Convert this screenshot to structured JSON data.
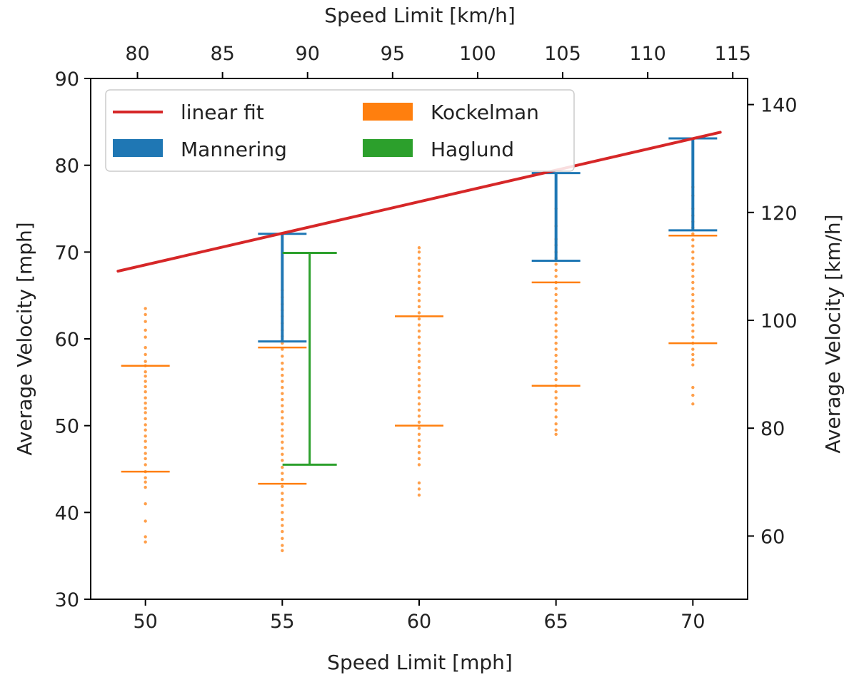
{
  "chart_data": {
    "type": "scatter",
    "title": "",
    "xlabel": "Speed Limit [mph]",
    "ylabel": "Average Velocity [mph]",
    "x2label": "Speed Limit [km/h]",
    "y2label": "Average Velocity [km/h]",
    "xlim": [
      48,
      72
    ],
    "ylim": [
      30,
      90
    ],
    "xticks": [
      50,
      55,
      60,
      65,
      70
    ],
    "yticks": [
      30,
      40,
      50,
      60,
      70,
      80,
      90
    ],
    "x2ticks": [
      80,
      85,
      90,
      95,
      100,
      105,
      110,
      115
    ],
    "y2ticks": [
      60,
      80,
      100,
      120,
      140
    ],
    "grid": false,
    "legend_position": "top-left",
    "colors": {
      "linear_fit": "#d62728",
      "mannering": "#1f77b4",
      "kockelman": "#ff7f0e",
      "haglund": "#2ca02c",
      "axis": "#000000"
    },
    "legend": [
      {
        "key": "linear_fit",
        "label": "linear fit",
        "style": "line"
      },
      {
        "key": "kockelman",
        "label": "Kockelman",
        "style": "bar"
      },
      {
        "key": "mannering",
        "label": "Mannering",
        "style": "bar"
      },
      {
        "key": "haglund",
        "label": "Haglund",
        "style": "bar"
      }
    ],
    "linear_fit": {
      "x": [
        49,
        71
      ],
      "y": [
        67.8,
        83.8
      ]
    },
    "mannering": [
      {
        "x": 55,
        "low": 59.7,
        "high": 72.1
      },
      {
        "x": 65,
        "low": 69.0,
        "high": 79.1
      },
      {
        "x": 70,
        "low": 72.5,
        "high": 83.1
      }
    ],
    "haglund": [
      {
        "x": 56,
        "low": 45.5,
        "high": 69.9
      }
    ],
    "kockelman_ranges": [
      {
        "x": 50,
        "low": 44.7,
        "high": 56.9
      },
      {
        "x": 55,
        "low": 43.3,
        "high": 59.0
      },
      {
        "x": 60,
        "low": 50.0,
        "high": 62.6
      },
      {
        "x": 65,
        "low": 54.6,
        "high": 66.5
      },
      {
        "x": 70,
        "low": 59.5,
        "high": 71.9
      }
    ],
    "kockelman_points": [
      {
        "x": 50,
        "values": [
          36.6,
          37.2,
          39.0,
          41.0,
          42.9,
          43.5,
          44.0,
          44.7,
          45.5,
          46.2,
          46.8,
          47.5,
          48.2,
          48.8,
          49.5,
          50.1,
          50.8,
          51.5,
          52.0,
          52.6,
          53.2,
          53.9,
          54.5,
          55.1,
          55.7,
          56.2,
          56.9,
          57.4,
          58.2,
          59.0,
          60.2,
          61.0,
          62.0,
          62.8,
          63.5
        ]
      },
      {
        "x": 55,
        "values": [
          35.6,
          36.2,
          37.0,
          37.8,
          38.5,
          39.2,
          40.0,
          40.8,
          41.5,
          42.2,
          43.0,
          43.8,
          44.5,
          45.2,
          46.0,
          46.7,
          47.4,
          48.1,
          48.8,
          49.5,
          50.2,
          50.9,
          51.6,
          52.3,
          53.0,
          53.7,
          54.4,
          55.1,
          55.8,
          56.5,
          57.2,
          58.0,
          58.8,
          59.5,
          60.3,
          61.0,
          61.8,
          62.6,
          63.3,
          64.0,
          64.8,
          65.6
        ]
      },
      {
        "x": 60,
        "values": [
          42.0,
          42.7,
          43.4,
          45.5,
          46.2,
          46.9,
          47.6,
          48.3,
          49.0,
          49.7,
          50.4,
          51.1,
          51.8,
          52.5,
          53.2,
          53.9,
          54.6,
          55.3,
          56.0,
          56.7,
          57.4,
          58.1,
          58.8,
          59.5,
          60.2,
          60.9,
          61.6,
          62.3,
          63.0,
          63.7,
          64.4,
          65.1,
          65.8,
          66.5,
          67.2,
          67.9,
          68.6,
          69.3,
          70.0,
          70.5
        ]
      },
      {
        "x": 65,
        "values": [
          49.0,
          49.5,
          50.2,
          51.0,
          51.8,
          52.5,
          53.2,
          53.9,
          54.6,
          55.3,
          56.0,
          56.7,
          57.4,
          58.1,
          58.8,
          59.5,
          60.2,
          60.9,
          61.6,
          62.3,
          63.0,
          63.7,
          64.4,
          65.1,
          65.8,
          66.5,
          67.2,
          67.9,
          68.6,
          69.3,
          70.0,
          70.8,
          71.5,
          73.0,
          75.0
        ]
      },
      {
        "x": 70,
        "values": [
          52.5,
          53.5,
          54.4,
          57.0,
          57.6,
          58.2,
          58.8,
          59.5,
          60.2,
          60.9,
          61.6,
          62.3,
          63.0,
          63.7,
          64.4,
          65.1,
          65.8,
          66.5,
          67.2,
          67.9,
          68.6,
          69.3,
          70.0,
          70.7,
          71.4,
          72.1,
          72.8,
          73.5,
          74.2,
          75.0,
          76.5,
          77.5
        ]
      }
    ]
  }
}
